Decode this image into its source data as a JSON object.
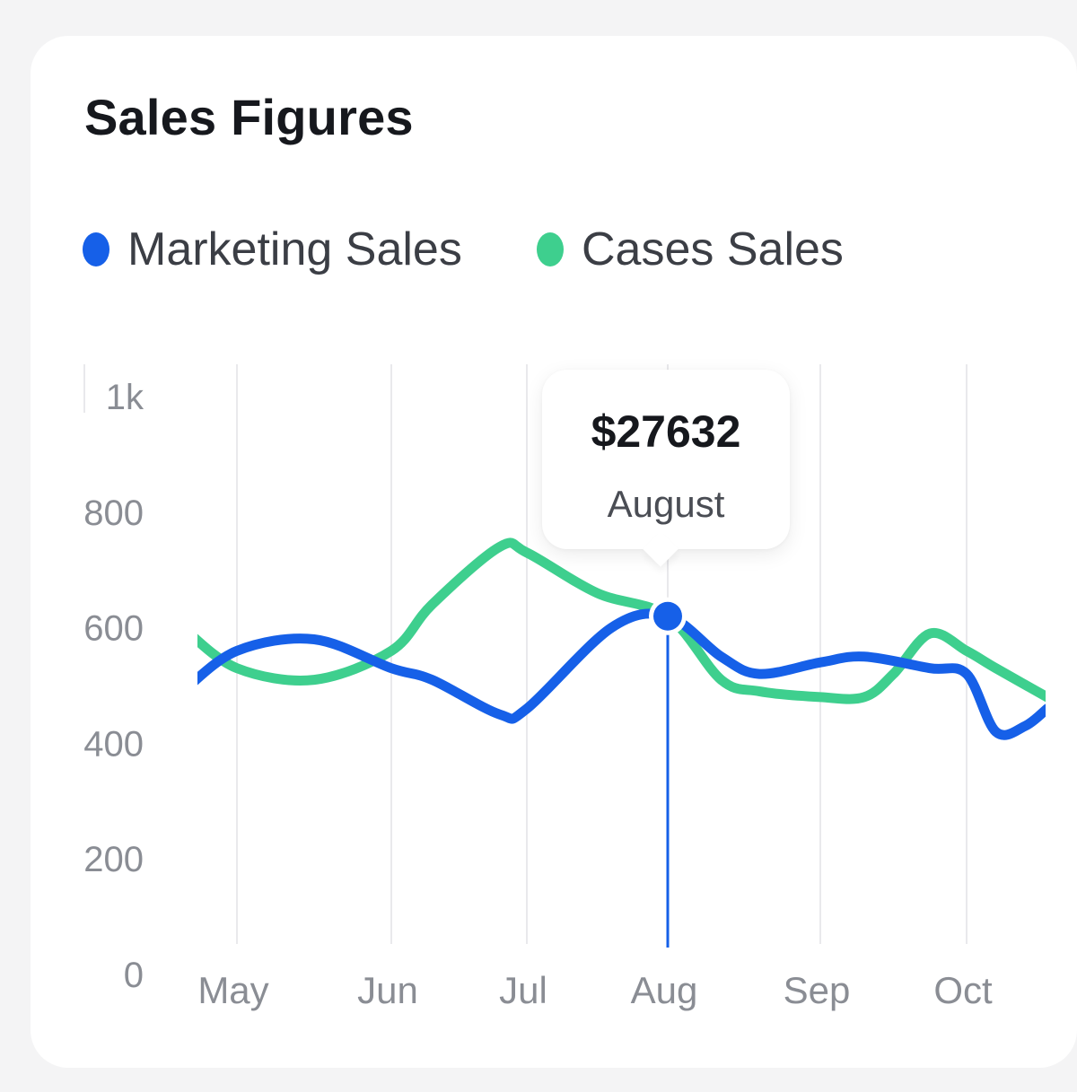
{
  "card": {
    "title": "Sales Figures"
  },
  "chart_data": {
    "type": "line",
    "title": "Sales Figures",
    "categories": [
      "May",
      "Jun",
      "Jul",
      "Aug",
      "Sep",
      "Oct"
    ],
    "y_ticks": [
      "0",
      "200",
      "400",
      "600",
      "800",
      "1k"
    ],
    "ylim": [
      0,
      1000
    ],
    "grid": {
      "vertical": true,
      "horizontal": false
    },
    "legend_position": "top-left",
    "series": [
      {
        "name": "Marketing Sales",
        "color": "#1660e8",
        "x": [
          4.65,
          5.0,
          5.5,
          6.0,
          6.3,
          6.8,
          7.0,
          7.6,
          8.0,
          8.35,
          8.6,
          9.0,
          9.3,
          9.75,
          10.0,
          10.2,
          10.4,
          10.55
        ],
        "values": [
          490,
          560,
          580,
          530,
          510,
          450,
          460,
          600,
          620,
          550,
          520,
          540,
          550,
          530,
          520,
          420,
          430,
          460
        ]
      },
      {
        "name": "Cases Sales",
        "color": "#3ecf8e",
        "x": [
          4.65,
          5.0,
          5.5,
          6.0,
          6.3,
          6.8,
          7.0,
          7.5,
          8.0,
          8.35,
          8.6,
          9.0,
          9.3,
          9.5,
          9.75,
          10.0,
          10.2,
          10.55
        ],
        "values": [
          600,
          530,
          510,
          560,
          640,
          740,
          730,
          660,
          620,
          510,
          490,
          480,
          480,
          520,
          590,
          560,
          530,
          480
        ]
      }
    ],
    "highlight": {
      "category": "Aug",
      "series": "Marketing Sales",
      "value": 620
    }
  },
  "tooltip": {
    "value": "$27632",
    "label": "August"
  },
  "colors": {
    "axis_text": "#8a8d94",
    "grid": "#e9e9ec",
    "marker": "#1660e8"
  }
}
